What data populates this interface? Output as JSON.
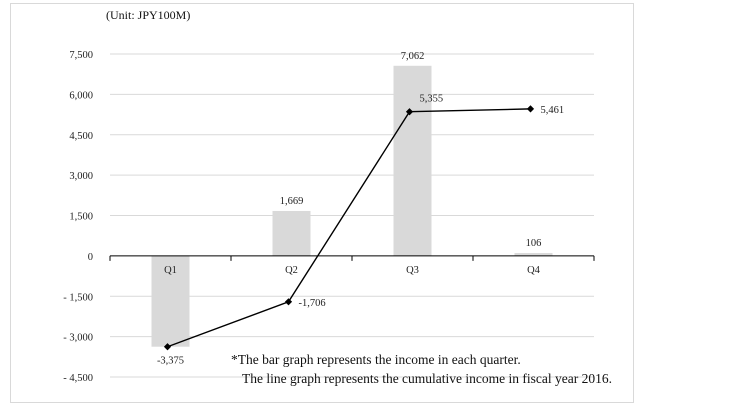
{
  "chart_data": {
    "type": "bar+line",
    "unit_label": "(Unit: JPY100M)",
    "categories": [
      "Q1",
      "Q2",
      "Q3",
      "Q4"
    ],
    "series": [
      {
        "type": "bar",
        "values": [
          -3375,
          1669,
          7062,
          106
        ],
        "labels": [
          "-3,375",
          "1,669",
          "7,062",
          "106"
        ]
      },
      {
        "type": "line",
        "values": [
          -3375,
          -1706,
          5355,
          5461
        ],
        "labels": [
          "",
          "-1,706",
          "5,355",
          "5,461"
        ]
      }
    ],
    "ylim": [
      -4500,
      7500
    ],
    "yticks": [
      -4500,
      -3000,
      -1500,
      0,
      1500,
      3000,
      4500,
      6000,
      7500
    ],
    "ytick_labels": [
      "- 4,500",
      "- 3,000",
      "- 1,500",
      "0",
      "1,500",
      "3,000",
      "4,500",
      "6,000",
      "7,500"
    ],
    "grid": true,
    "colors": {
      "bar": "#d9d9d9",
      "line": "#000000",
      "grid": "#d9d9d9"
    },
    "notes": [
      "*The bar graph represents the income in each quarter.",
      "The line graph represents the cumulative income in fiscal year 2016."
    ]
  }
}
